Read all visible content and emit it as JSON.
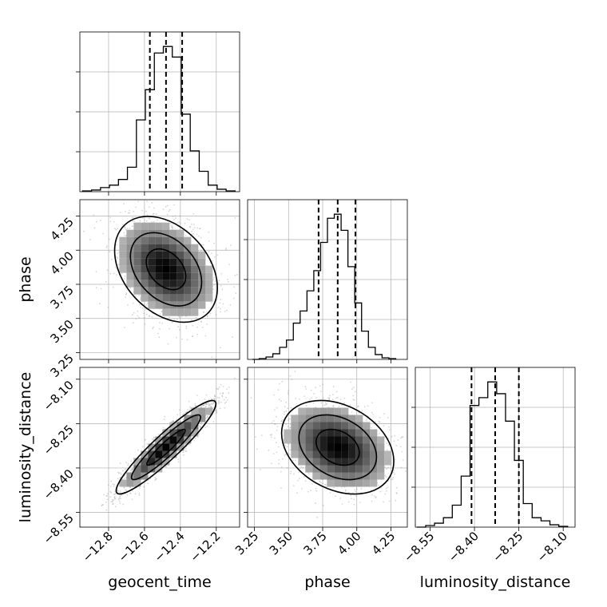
{
  "figure_type": "corner-plot",
  "chart_data": [
    {
      "type": "histogram",
      "param": "geocent_time",
      "x": [
        -12.92,
        -12.87,
        -12.82,
        -12.77,
        -12.72,
        -12.67,
        -12.62,
        -12.57,
        -12.52,
        -12.47,
        -12.42,
        -12.37,
        -12.32,
        -12.27,
        -12.22,
        -12.17,
        -12.12
      ],
      "values": [
        1,
        2,
        5,
        8,
        15,
        30,
        88,
        125,
        170,
        178,
        165,
        95,
        50,
        25,
        8,
        3,
        1
      ],
      "quantiles": [
        -12.57,
        -12.48,
        -12.39
      ],
      "xlim": [
        -12.96,
        -12.07
      ],
      "x_ticks": [
        "−12.8",
        "−12.6",
        "−12.4",
        "−12.2"
      ]
    },
    {
      "type": "histogram",
      "param": "phase",
      "x": [
        3.26,
        3.31,
        3.36,
        3.41,
        3.46,
        3.51,
        3.56,
        3.61,
        3.66,
        3.71,
        3.76,
        3.81,
        3.86,
        3.91,
        3.96,
        4.01,
        4.06,
        4.11,
        4.16,
        4.21,
        4.26
      ],
      "values": [
        0,
        1,
        3,
        7,
        15,
        24,
        45,
        60,
        85,
        110,
        145,
        175,
        180,
        160,
        115,
        70,
        35,
        15,
        6,
        2,
        1
      ],
      "quantiles": [
        3.72,
        3.86,
        3.99
      ],
      "xlim": [
        3.2,
        4.37
      ],
      "x_ticks": [
        "3.25",
        "3.50",
        "3.75",
        "4.00",
        "4.25"
      ]
    },
    {
      "type": "histogram",
      "param": "luminosity_distance",
      "x": [
        -8.58,
        -8.55,
        -8.52,
        -8.49,
        -8.46,
        -8.43,
        -8.4,
        -8.37,
        -8.34,
        -8.31,
        -8.28,
        -8.25,
        -8.22,
        -8.19,
        -8.16,
        -8.13,
        -8.1
      ],
      "values": [
        0,
        2,
        5,
        12,
        28,
        65,
        155,
        165,
        185,
        170,
        135,
        85,
        30,
        12,
        8,
        3,
        1
      ],
      "quantiles": [
        -8.41,
        -8.33,
        -8.25
      ],
      "xlim": [
        -8.6,
        -8.06
      ],
      "x_ticks": [
        "−8.55",
        "−8.40",
        "−8.25",
        "−8.10"
      ]
    },
    {
      "type": "2d-density",
      "x_param": "geocent_time",
      "y_param": "phase",
      "center": [
        -12.48,
        3.86
      ],
      "xlim": [
        -12.96,
        -12.07
      ],
      "ylim": [
        3.2,
        4.37
      ],
      "correlation": "weak negative",
      "y_ticks": [
        "3.25",
        "3.50",
        "3.75",
        "4.00",
        "4.25"
      ]
    },
    {
      "type": "2d-density",
      "x_param": "geocent_time",
      "y_param": "luminosity_distance",
      "center": [
        -12.48,
        -8.33
      ],
      "xlim": [
        -12.96,
        -12.07
      ],
      "ylim": [
        -8.6,
        -8.06
      ],
      "correlation": "strong positive",
      "y_ticks": [
        "−8.55",
        "−8.40",
        "−8.25",
        "−8.10"
      ]
    },
    {
      "type": "2d-density",
      "x_param": "phase",
      "y_param": "luminosity_distance",
      "center": [
        3.86,
        -8.33
      ],
      "xlim": [
        3.2,
        4.37
      ],
      "ylim": [
        -8.6,
        -8.06
      ],
      "correlation": "weak negative"
    }
  ],
  "axis_labels": {
    "geocent_time": "geocent_time",
    "phase": "phase",
    "luminosity_distance": "luminosity_distance"
  },
  "colors": {
    "line": "#000000",
    "grid": "#b0b0b0",
    "scatter": "#8a8a8a",
    "contour": "#000000",
    "density_low": "#e6e6e6",
    "density_high": "#000000"
  }
}
